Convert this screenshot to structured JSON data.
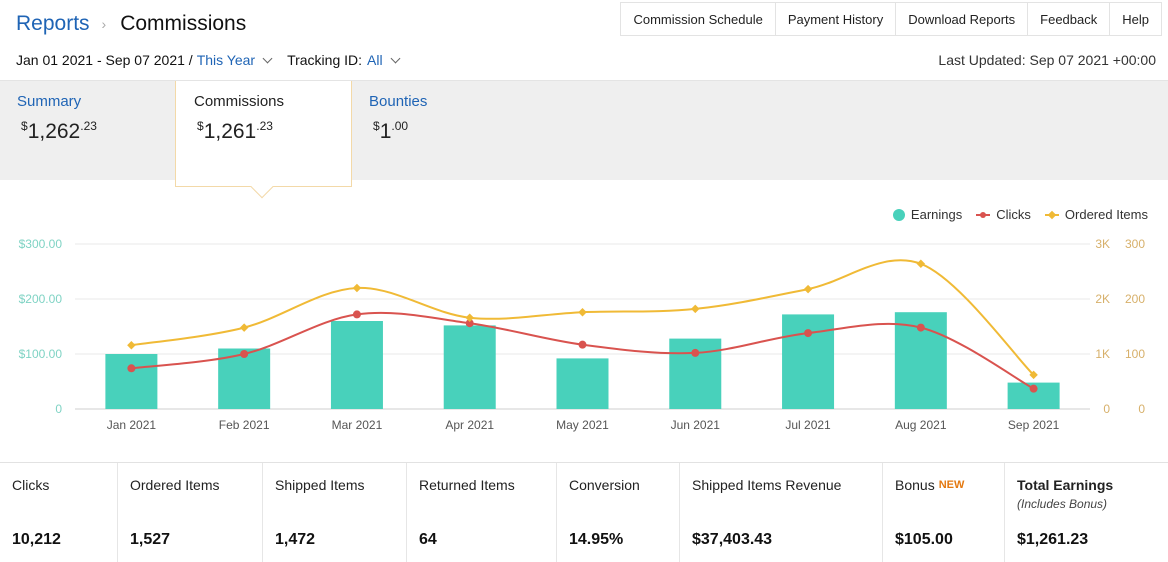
{
  "header": {
    "breadcrumb_root": "Reports",
    "breadcrumb_current": "Commissions",
    "nav": [
      "Commission Schedule",
      "Payment History",
      "Download Reports",
      "Feedback",
      "Help"
    ],
    "date_range": "Jan 01 2021 - Sep 07 2021 /",
    "period": "This Year",
    "tracking_label": "Tracking ID:",
    "tracking_value": "All",
    "last_updated": "Last Updated: Sep 07 2021 +00:00"
  },
  "tabs": [
    {
      "title": "Summary",
      "currency": "$",
      "whole": "1,262",
      "cents": ".23",
      "active": false
    },
    {
      "title": "Commissions",
      "currency": "$",
      "whole": "1,261",
      "cents": ".23",
      "active": true
    },
    {
      "title": "Bounties",
      "currency": "$",
      "whole": "1",
      "cents": ".00",
      "active": false
    }
  ],
  "colors": {
    "earnings": "#48d1bb",
    "clicks": "#d9534f",
    "ordered_items": "#f0ba36",
    "link": "#1f64b5"
  },
  "chart_data": {
    "type": "bar",
    "categories": [
      "Jan 2021",
      "Feb 2021",
      "Mar 2021",
      "Apr 2021",
      "May 2021",
      "Jun 2021",
      "Jul 2021",
      "Aug 2021",
      "Sep 2021"
    ],
    "series": [
      {
        "name": "Earnings",
        "type": "bar",
        "axis": "left",
        "values": [
          100,
          110,
          160,
          152,
          92,
          128,
          172,
          176,
          48
        ]
      },
      {
        "name": "Clicks",
        "type": "line",
        "axis": "right-clicks",
        "values": [
          740,
          1000,
          1720,
          1560,
          1170,
          1020,
          1380,
          1480,
          370
        ]
      },
      {
        "name": "Ordered Items",
        "type": "line",
        "axis": "right-items",
        "values": [
          116,
          148,
          220,
          166,
          176,
          182,
          218,
          264,
          62
        ]
      }
    ],
    "left_axis": {
      "ticks": [
        "0",
        "$100.00",
        "$200.00",
        "$300.00"
      ],
      "range": [
        0,
        300
      ]
    },
    "right_axis_clicks": {
      "ticks": [
        "0",
        "1K",
        "2K",
        "3K"
      ],
      "range": [
        0,
        3000
      ]
    },
    "right_axis_items": {
      "ticks": [
        "0",
        "100",
        "200",
        "300"
      ],
      "range": [
        0,
        300
      ]
    },
    "legend": [
      "Earnings",
      "Clicks",
      "Ordered Items"
    ],
    "legend_position": "top-right",
    "grid": true
  },
  "metrics": [
    {
      "label": "Clicks",
      "value": "10,212"
    },
    {
      "label": "Ordered Items",
      "value": "1,527"
    },
    {
      "label": "Shipped Items",
      "value": "1,472"
    },
    {
      "label": "Returned Items",
      "value": "64"
    },
    {
      "label": "Conversion",
      "value": "14.95%"
    },
    {
      "label": "Shipped Items Revenue",
      "value": "$37,403.43"
    },
    {
      "label": "Bonus",
      "badge": "NEW",
      "value": "$105.00"
    },
    {
      "label": "Total Earnings",
      "sub": "(Includes Bonus)",
      "value": "$1,261.23"
    }
  ]
}
